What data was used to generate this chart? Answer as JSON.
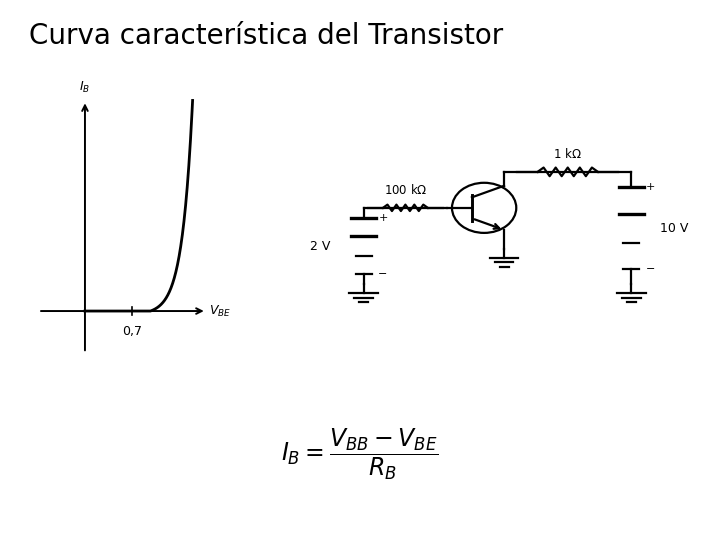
{
  "title": "Curva característica del Transistor",
  "title_fontsize": 20,
  "background_color": "#ffffff",
  "curve_color": "#000000",
  "label_IB": "$I_B$",
  "label_VBE": "$V_{BE}$",
  "label_07": "0,7",
  "formula": "$I_B = \\dfrac{V_{BB} - V_{BE}}{R_B}$",
  "label_100k": "100 k$\\Omega$",
  "label_1k": "1 k$\\Omega$",
  "label_2V": "2 V",
  "label_10V": "10 V"
}
